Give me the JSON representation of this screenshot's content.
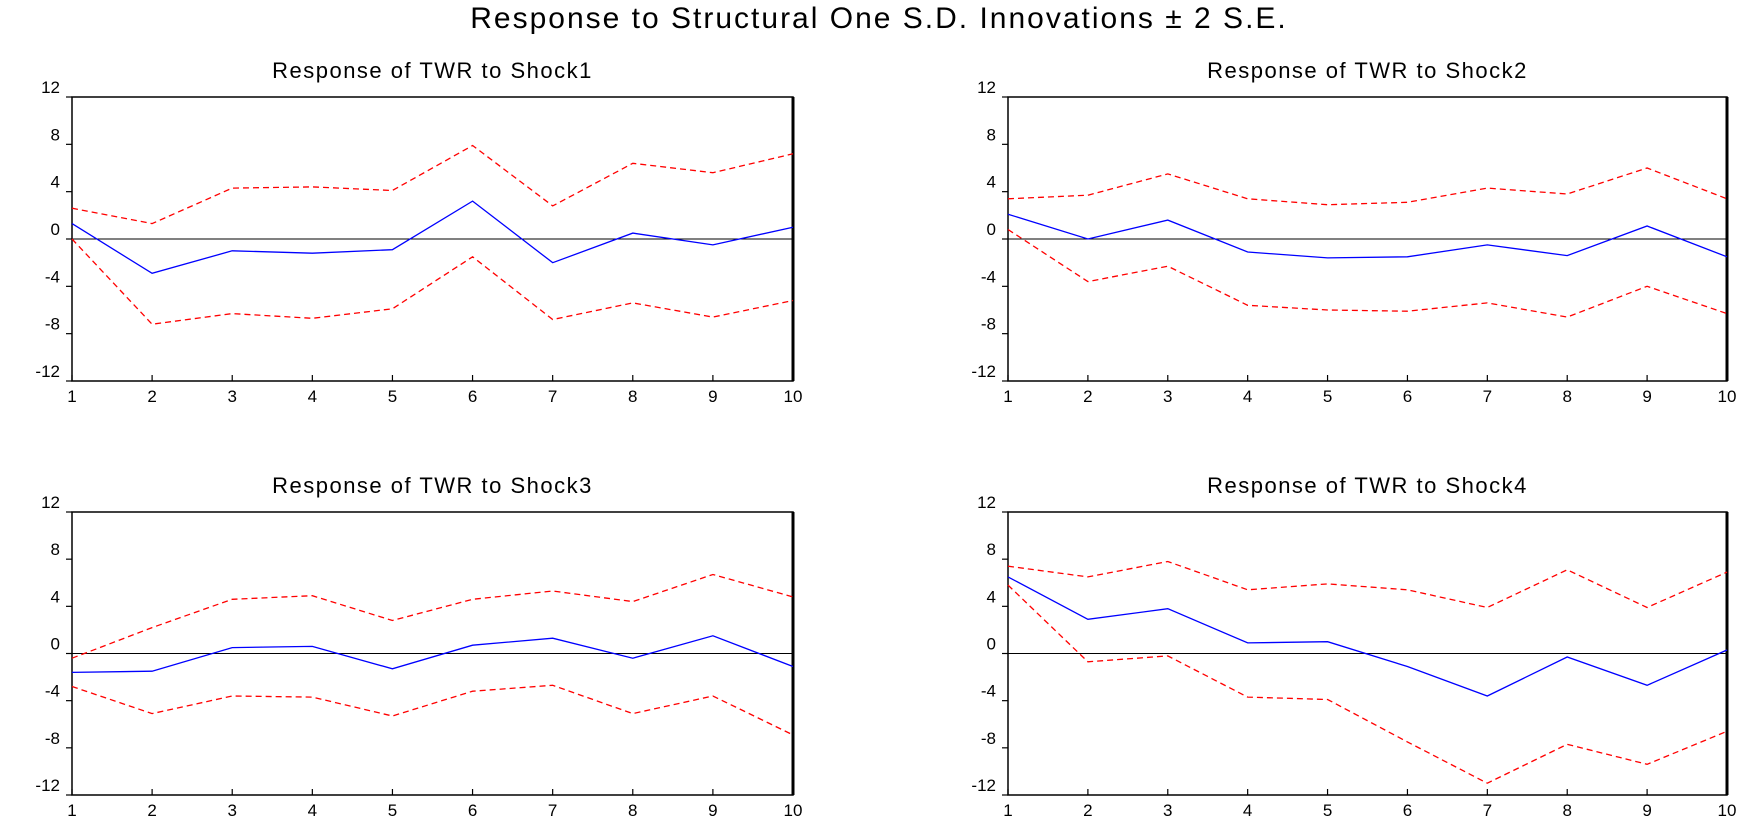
{
  "title": "Response to Structural One S.D. Innovations ± 2 S.E.",
  "colors": {
    "response": "#0000ff",
    "bands": "#ff0000",
    "zero_line": "#000000",
    "frame": "#000000"
  },
  "chart_data": [
    {
      "type": "line",
      "title": "Response of TWR to Shock1",
      "x": [
        1,
        2,
        3,
        4,
        5,
        6,
        7,
        8,
        9,
        10
      ],
      "ylim": [
        -12,
        12
      ],
      "yticks": [
        12,
        8,
        4,
        0,
        -4,
        -8,
        -12
      ],
      "series": [
        {
          "role": "response",
          "values": [
            1.3,
            -2.9,
            -1.0,
            -1.2,
            -0.9,
            3.2,
            -2.0,
            0.5,
            -0.5,
            1.0
          ]
        },
        {
          "role": "upper",
          "values": [
            2.6,
            1.3,
            4.3,
            4.4,
            4.1,
            7.9,
            2.8,
            6.4,
            5.6,
            7.2
          ]
        },
        {
          "role": "lower",
          "values": [
            0.0,
            -7.2,
            -6.3,
            -6.7,
            -5.9,
            -1.5,
            -6.8,
            -5.4,
            -6.6,
            -5.2
          ]
        }
      ]
    },
    {
      "type": "line",
      "title": "Response of TWR to Shock2",
      "x": [
        1,
        2,
        3,
        4,
        5,
        6,
        7,
        8,
        9,
        10
      ],
      "ylim": [
        -12,
        12
      ],
      "yticks": [
        12,
        8,
        4,
        0,
        -4,
        -8,
        -12
      ],
      "series": [
        {
          "role": "response",
          "values": [
            2.1,
            0.0,
            1.6,
            -1.1,
            -1.6,
            -1.5,
            -0.5,
            -1.4,
            1.1,
            -1.5
          ]
        },
        {
          "role": "upper",
          "values": [
            3.4,
            3.7,
            5.5,
            3.4,
            2.9,
            3.1,
            4.3,
            3.8,
            6.0,
            3.4
          ]
        },
        {
          "role": "lower",
          "values": [
            0.8,
            -3.6,
            -2.3,
            -5.6,
            -6.0,
            -6.1,
            -5.4,
            -6.6,
            -4.0,
            -6.3
          ]
        }
      ]
    },
    {
      "type": "line",
      "title": "Response of TWR to Shock3",
      "x": [
        1,
        2,
        3,
        4,
        5,
        6,
        7,
        8,
        9,
        10
      ],
      "ylim": [
        -12,
        12
      ],
      "yticks": [
        12,
        8,
        4,
        0,
        -4,
        -8,
        -12
      ],
      "series": [
        {
          "role": "response",
          "values": [
            -1.6,
            -1.5,
            0.5,
            0.6,
            -1.3,
            0.7,
            1.3,
            -0.4,
            1.5,
            -1.1
          ]
        },
        {
          "role": "upper",
          "values": [
            -0.4,
            2.2,
            4.6,
            4.9,
            2.8,
            4.6,
            5.3,
            4.4,
            6.7,
            4.8
          ]
        },
        {
          "role": "lower",
          "values": [
            -2.8,
            -5.1,
            -3.6,
            -3.7,
            -5.3,
            -3.2,
            -2.7,
            -5.1,
            -3.6,
            -6.9
          ]
        }
      ]
    },
    {
      "type": "line",
      "title": "Response of TWR to Shock4",
      "x": [
        1,
        2,
        3,
        4,
        5,
        6,
        7,
        8,
        9,
        10
      ],
      "ylim": [
        -12,
        12
      ],
      "yticks": [
        12,
        8,
        4,
        0,
        -4,
        -8,
        -12
      ],
      "series": [
        {
          "role": "response",
          "values": [
            6.5,
            2.9,
            3.8,
            0.9,
            1.0,
            -1.1,
            -3.6,
            -0.3,
            -2.7,
            0.3
          ]
        },
        {
          "role": "upper",
          "values": [
            7.4,
            6.5,
            7.8,
            5.4,
            5.9,
            5.4,
            3.9,
            7.1,
            3.9,
            6.9
          ]
        },
        {
          "role": "lower",
          "values": [
            5.8,
            -0.7,
            -0.2,
            -3.7,
            -3.9,
            -7.5,
            -11.0,
            -7.7,
            -9.4,
            -6.6
          ]
        }
      ]
    }
  ]
}
